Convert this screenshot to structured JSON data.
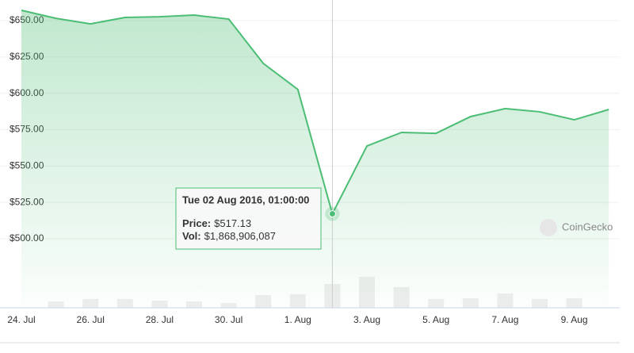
{
  "chart_data": {
    "type": "line",
    "categories": [
      "24. Jul",
      null,
      "26. Jul",
      null,
      "28. Jul",
      null,
      "30. Jul",
      null,
      "1. Aug",
      null,
      "3. Aug",
      null,
      "5. Aug",
      null,
      "7. Aug",
      null,
      "9. Aug",
      null
    ],
    "series": [
      {
        "color": "#4cbd74",
        "values": [
          657.1,
          651.6,
          647.8,
          652.2,
          652.7,
          653.8,
          651.1,
          620.6,
          602.7,
          517.13,
          563.8,
          573.1,
          572.5,
          584.0,
          589.5,
          587.3,
          581.8,
          588.9
        ]
      },
      {
        "color": "#eeeeee",
        "values": [
          null,
          500000000,
          690000000,
          690000000,
          560000000,
          500000000,
          370000000,
          1000000000,
          1060000000,
          1868906087,
          2430000000,
          1620000000,
          690000000,
          750000000,
          1120000000,
          690000000,
          750000000,
          null
        ]
      }
    ],
    "ylim": [
      452.5,
      664.2
    ],
    "yticks": [
      {
        "value": 500,
        "label": "$500.00"
      },
      {
        "value": 525,
        "label": "$525.00"
      },
      {
        "value": 550,
        "label": "$550.00"
      },
      {
        "value": 575,
        "label": "$575.00"
      },
      {
        "value": 600,
        "label": "$600.00"
      },
      {
        "value": 625,
        "label": "$625.00"
      },
      {
        "value": 650,
        "label": "$650.00"
      }
    ],
    "grid": true,
    "tooltip": {
      "index": 9,
      "title": "Tue 02 Aug 2016, 01:00:00",
      "items": [
        {
          "label": "Price:",
          "series": 0,
          "value_label": "$517.13"
        },
        {
          "label": "Vol:",
          "series": 1,
          "value_label": "$1,868,906,087"
        }
      ]
    },
    "watermark": "CoinGecko"
  }
}
